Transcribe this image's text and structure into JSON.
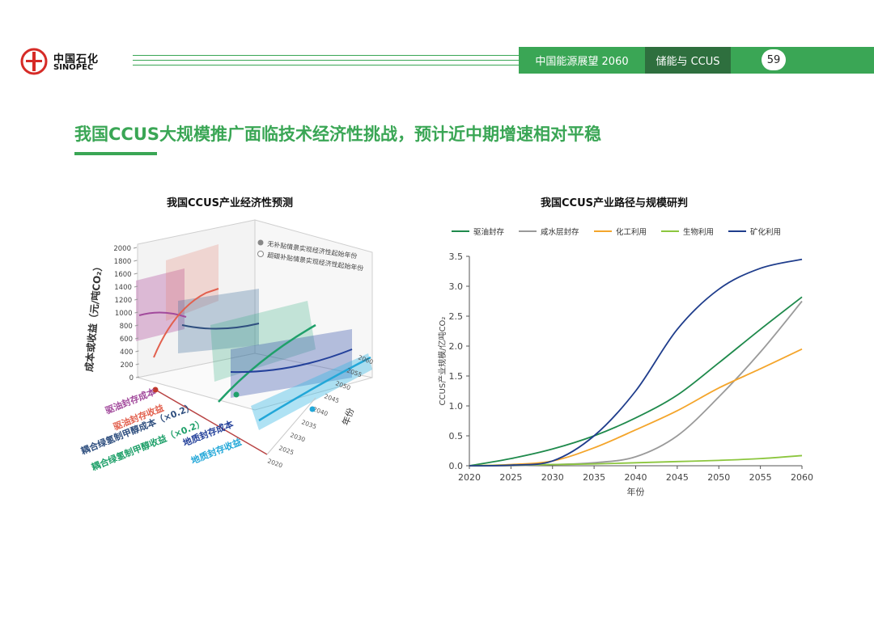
{
  "logo": {
    "cn": "中国石化",
    "en": "SINOPEC"
  },
  "header": {
    "section": "中国能源展望 2060",
    "topic": "储能与 CCUS",
    "page": "59"
  },
  "title": "我国CCUS大规模推广面临技术经济性挑战，预计近中期增速相对平稳",
  "colors": {
    "brand_green": "#3aa655",
    "dark_green": "#2e6f3e"
  },
  "left_chart": {
    "title": "我国CCUS产业经济性预测",
    "zlabel": "成本或收益（元/吨CO₂）",
    "zticks": [
      "0",
      "200",
      "400",
      "600",
      "800",
      "1000",
      "1200",
      "1400",
      "1600",
      "1800",
      "2000"
    ],
    "year_axis_label": "年份",
    "year_ticks": [
      "2020",
      "2025",
      "2030",
      "2035",
      "2040",
      "2045",
      "2050",
      "2055",
      "2060"
    ],
    "legend": [
      "无补贴情景实现经济性起始年份",
      "超碳补贴情景实现经济性起始年份"
    ],
    "categories": [
      {
        "label": "驱油封存成本",
        "color": "#a24a9c"
      },
      {
        "label": "驱油封存收益",
        "color": "#e2604e"
      },
      {
        "label": "耦合绿氢制甲醇成本（×0.2）",
        "color": "#2f4f7f"
      },
      {
        "label": "耦合绿氢制甲醇收益（×0.2）",
        "color": "#1fa06a"
      },
      {
        "label": "地质封存成本",
        "color": "#23409a"
      },
      {
        "label": "地质封存收益",
        "color": "#22a7d8"
      }
    ]
  },
  "chart_data": {
    "type": "line",
    "title": "我国CCUS产业路径与规模研判",
    "xlabel": "年份",
    "ylabel": "CCUS产业规模/亿吨CO₂",
    "xlim": [
      2020,
      2060
    ],
    "ylim": [
      0,
      3.5
    ],
    "x": [
      2020,
      2025,
      2030,
      2035,
      2040,
      2045,
      2050,
      2055,
      2060
    ],
    "yticks": [
      "0.0",
      "0.5",
      "1.0",
      "1.5",
      "2.0",
      "2.5",
      "3.0",
      "3.5"
    ],
    "legend_position": "top",
    "grid": false,
    "series": [
      {
        "name": "驱油封存",
        "color": "#1f8a4c",
        "values": [
          0.0,
          0.12,
          0.28,
          0.5,
          0.8,
          1.18,
          1.72,
          2.28,
          2.82
        ]
      },
      {
        "name": "咸水层封存",
        "color": "#9a9a9a",
        "values": [
          0.0,
          0.0,
          0.02,
          0.05,
          0.15,
          0.5,
          1.15,
          1.9,
          2.75
        ]
      },
      {
        "name": "化工利用",
        "color": "#f4a52b",
        "values": [
          0.0,
          0.02,
          0.08,
          0.3,
          0.6,
          0.92,
          1.3,
          1.62,
          1.95
        ]
      },
      {
        "name": "生物利用",
        "color": "#8cc63e",
        "values": [
          0.0,
          0.01,
          0.02,
          0.03,
          0.05,
          0.07,
          0.09,
          0.12,
          0.17
        ]
      },
      {
        "name": "矿化利用",
        "color": "#1f3d8c",
        "values": [
          0.0,
          0.01,
          0.08,
          0.5,
          1.25,
          2.28,
          2.95,
          3.3,
          3.45
        ]
      }
    ]
  }
}
